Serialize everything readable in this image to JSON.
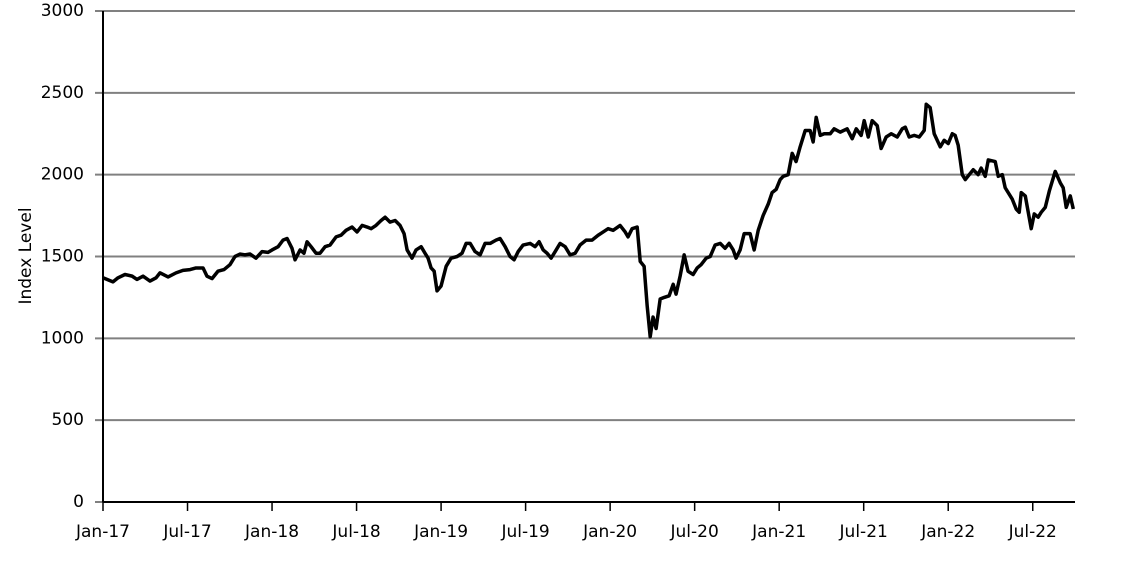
{
  "chart_data": {
    "type": "line",
    "y_label": "Index Level",
    "x": [
      2017.0,
      2017.059,
      2017.089,
      2017.13,
      2017.172,
      2017.201,
      2017.237,
      2017.278,
      2017.314,
      2017.337,
      2017.385,
      2017.432,
      2017.473,
      2017.515,
      2017.55,
      2017.592,
      2017.615,
      2017.645,
      2017.68,
      2017.716,
      2017.751,
      2017.781,
      2017.811,
      2017.84,
      2017.87,
      2017.905,
      2017.941,
      2017.976,
      2018.0,
      2018.036,
      2018.065,
      2018.089,
      2018.118,
      2018.136,
      2018.166,
      2018.189,
      2018.207,
      2018.231,
      2018.26,
      2018.284,
      2018.314,
      2018.343,
      2018.379,
      2018.408,
      2018.438,
      2018.473,
      2018.503,
      2018.533,
      2018.562,
      2018.586,
      2018.615,
      2018.645,
      2018.669,
      2018.698,
      2018.728,
      2018.757,
      2018.781,
      2018.799,
      2018.828,
      2018.852,
      2018.882,
      2018.905,
      2018.923,
      2018.941,
      2018.959,
      2018.976,
      2019.0,
      2019.03,
      2019.059,
      2019.095,
      2019.124,
      2019.148,
      2019.172,
      2019.201,
      2019.231,
      2019.26,
      2019.29,
      2019.325,
      2019.349,
      2019.379,
      2019.408,
      2019.432,
      2019.456,
      2019.485,
      2019.527,
      2019.556,
      2019.58,
      2019.604,
      2019.627,
      2019.651,
      2019.675,
      2019.704,
      2019.734,
      2019.763,
      2019.793,
      2019.822,
      2019.858,
      2019.893,
      2019.929,
      2019.959,
      2019.988,
      2020.018,
      2020.059,
      2020.089,
      2020.106,
      2020.13,
      2020.16,
      2020.178,
      2020.201,
      2020.219,
      2020.237,
      2020.254,
      2020.272,
      2020.296,
      2020.32,
      2020.349,
      2020.373,
      2020.39,
      2020.414,
      2020.438,
      2020.461,
      2020.491,
      2020.515,
      2020.538,
      2020.568,
      2020.592,
      2020.621,
      2020.651,
      2020.68,
      2020.704,
      2020.728,
      2020.745,
      2020.769,
      2020.793,
      2020.828,
      2020.852,
      2020.876,
      2020.905,
      2020.935,
      2020.958,
      2020.982,
      2021.006,
      2021.024,
      2021.053,
      2021.077,
      2021.1,
      2021.124,
      2021.154,
      2021.183,
      2021.201,
      2021.219,
      2021.243,
      2021.266,
      2021.302,
      2021.325,
      2021.361,
      2021.402,
      2021.432,
      2021.456,
      2021.485,
      2021.503,
      2021.527,
      2021.55,
      2021.58,
      2021.603,
      2021.633,
      2021.663,
      2021.698,
      2021.728,
      2021.746,
      2021.769,
      2021.799,
      2021.828,
      2021.858,
      2021.87,
      2021.893,
      2021.917,
      2021.953,
      2021.976,
      2022.0,
      2022.024,
      2022.041,
      2022.059,
      2022.083,
      2022.101,
      2022.124,
      2022.148,
      2022.177,
      2022.195,
      2022.219,
      2022.237,
      2022.278,
      2022.296,
      2022.32,
      2022.337,
      2022.379,
      2022.402,
      2022.42,
      2022.432,
      2022.456,
      2022.491,
      2022.509,
      2022.532,
      2022.55,
      2022.574,
      2022.598,
      2022.633,
      2022.663,
      2022.68,
      2022.698,
      2022.722,
      2022.74
    ],
    "series": [
      {
        "color": "#000000",
        "values": [
          1370,
          1345,
          1370,
          1390,
          1380,
          1360,
          1380,
          1350,
          1370,
          1400,
          1375,
          1400,
          1415,
          1420,
          1430,
          1430,
          1380,
          1365,
          1410,
          1420,
          1450,
          1500,
          1515,
          1510,
          1515,
          1490,
          1530,
          1525,
          1540,
          1560,
          1600,
          1610,
          1550,
          1480,
          1540,
          1520,
          1590,
          1560,
          1520,
          1520,
          1560,
          1570,
          1620,
          1630,
          1660,
          1680,
          1650,
          1690,
          1680,
          1670,
          1690,
          1720,
          1740,
          1710,
          1720,
          1690,
          1640,
          1540,
          1490,
          1540,
          1560,
          1520,
          1490,
          1430,
          1410,
          1290,
          1320,
          1440,
          1490,
          1500,
          1520,
          1580,
          1580,
          1530,
          1510,
          1580,
          1580,
          1600,
          1610,
          1560,
          1500,
          1480,
          1530,
          1570,
          1580,
          1560,
          1590,
          1540,
          1520,
          1490,
          1530,
          1580,
          1560,
          1510,
          1520,
          1570,
          1600,
          1600,
          1630,
          1650,
          1670,
          1660,
          1690,
          1650,
          1620,
          1670,
          1680,
          1470,
          1440,
          1200,
          1010,
          1130,
          1060,
          1240,
          1250,
          1260,
          1330,
          1270,
          1380,
          1510,
          1410,
          1390,
          1430,
          1450,
          1490,
          1500,
          1570,
          1580,
          1550,
          1580,
          1540,
          1490,
          1540,
          1640,
          1640,
          1540,
          1660,
          1750,
          1820,
          1890,
          1910,
          1970,
          1990,
          2000,
          2130,
          2080,
          2170,
          2270,
          2270,
          2200,
          2350,
          2240,
          2250,
          2250,
          2280,
          2260,
          2280,
          2220,
          2280,
          2240,
          2330,
          2230,
          2330,
          2300,
          2160,
          2230,
          2250,
          2230,
          2280,
          2290,
          2230,
          2240,
          2230,
          2270,
          2430,
          2410,
          2250,
          2170,
          2210,
          2190,
          2250,
          2240,
          2180,
          2000,
          1970,
          2000,
          2030,
          2000,
          2040,
          1990,
          2090,
          2080,
          1990,
          2000,
          1920,
          1850,
          1790,
          1770,
          1890,
          1870,
          1670,
          1760,
          1740,
          1770,
          1800,
          1900,
          2020,
          1950,
          1920,
          1800,
          1870,
          1790
        ]
      }
    ],
    "xlim": [
      2017,
      2022.75
    ],
    "xticks": [
      {
        "value": 2017,
        "label": "Jan-17"
      },
      {
        "value": 2017.5,
        "label": "Jul-17"
      },
      {
        "value": 2018,
        "label": "Jan-18"
      },
      {
        "value": 2018.5,
        "label": "Jul-18"
      },
      {
        "value": 2019,
        "label": "Jan-19"
      },
      {
        "value": 2019.5,
        "label": "Jul-19"
      },
      {
        "value": 2020,
        "label": "Jan-20"
      },
      {
        "value": 2020.5,
        "label": "Jul-20"
      },
      {
        "value": 2021,
        "label": "Jan-21"
      },
      {
        "value": 2021.5,
        "label": "Jul-21"
      },
      {
        "value": 2022,
        "label": "Jan-22"
      },
      {
        "value": 2022.5,
        "label": "Jul-22"
      }
    ],
    "ylim": [
      0,
      3000
    ],
    "yticks": [
      0,
      500,
      1000,
      1500,
      2000,
      2500,
      3000
    ],
    "grid": true
  }
}
